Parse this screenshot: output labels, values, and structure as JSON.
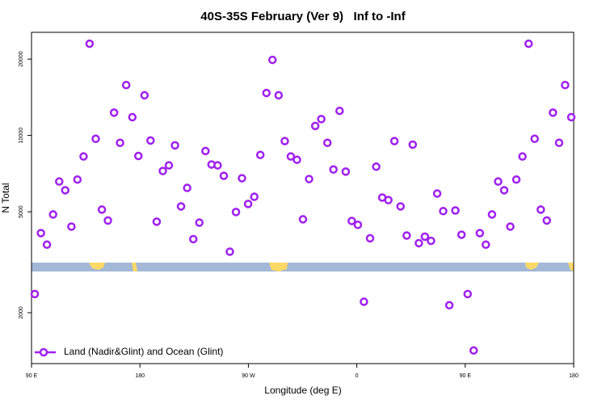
{
  "chart_data": {
    "type": "scatter",
    "title": "40S-35S February (Ver 9)   Inf to -Inf",
    "x_label": "Longitude (deg E)",
    "y_label": "N Total",
    "yscale": "log",
    "xlim": [
      90,
      540
    ],
    "ylim": [
      1260,
      25500
    ],
    "xticks": [
      {
        "value": 90,
        "label": "90 E"
      },
      {
        "value": 180,
        "label": "180"
      },
      {
        "value": 270,
        "label": "90 W"
      },
      {
        "value": 360,
        "label": "0"
      },
      {
        "value": 450,
        "label": "90 E"
      },
      {
        "value": 540,
        "label": "180"
      }
    ],
    "yticks": [
      2000,
      5000,
      10000,
      20000
    ],
    "grid": false,
    "legend": "lower left",
    "series": [
      {
        "name": "Land (Nadir&Glint) and Ocean (Glint)",
        "color": "#a020f0",
        "x": [
          92.7,
          97.8,
          102.8,
          107.9,
          113.0,
          118.0,
          123.1,
          128.1,
          133.2,
          138.2,
          143.3,
          148.4,
          153.4,
          158.5,
          163.5,
          168.6,
          173.7,
          178.7,
          183.8,
          188.8,
          193.9,
          199.0,
          204.0,
          209.1,
          214.1,
          219.2,
          224.3,
          229.3,
          234.4,
          239.4,
          244.5,
          249.6,
          254.6,
          259.7,
          264.7,
          269.8,
          274.9,
          279.9,
          285.0,
          290.0,
          295.1,
          300.2,
          305.2,
          310.3,
          315.3,
          320.4,
          325.5,
          330.5,
          335.6,
          340.6,
          345.7,
          350.8,
          355.8,
          360.9,
          365.9,
          371.0,
          376.1,
          381.1,
          386.2,
          391.2,
          396.3,
          401.4,
          406.4,
          411.5,
          416.5,
          421.6,
          426.7,
          431.7,
          436.8,
          441.8,
          446.9,
          452.0,
          457.0,
          462.1,
          467.1,
          472.2,
          477.3,
          482.3,
          487.4,
          492.4,
          497.5,
          502.6,
          507.6,
          512.7,
          517.7,
          522.8,
          527.9,
          532.9,
          538.0
        ],
        "values": [
          2370,
          4120,
          3710,
          4880,
          6580,
          6080,
          4370,
          6700,
          8260,
          23000,
          9700,
          5100,
          4620,
          12300,
          9350,
          15800,
          11800,
          8300,
          14400,
          9550,
          4570,
          7240,
          7620,
          9140,
          5250,
          6210,
          3900,
          4530,
          8680,
          7680,
          7620,
          6930,
          3480,
          4990,
          6780,
          5370,
          5730,
          8380,
          14700,
          19860,
          14400,
          9500,
          8260,
          8020,
          4670,
          6730,
          10900,
          11600,
          9350,
          7340,
          12500,
          7200,
          4600,
          4440,
          2210,
          3930,
          7530,
          5690,
          5560,
          9500,
          5250,
          4030,
          9200,
          3760,
          3990,
          3840,
          5900,
          5030,
          2140,
          5060,
          4060,
          2370,
          1420,
          4120,
          3710,
          4880,
          6580,
          6080,
          4370,
          6700,
          8260,
          23000,
          9700,
          5100,
          4620,
          12300,
          9350,
          15800,
          11800
        ]
      }
    ]
  }
}
